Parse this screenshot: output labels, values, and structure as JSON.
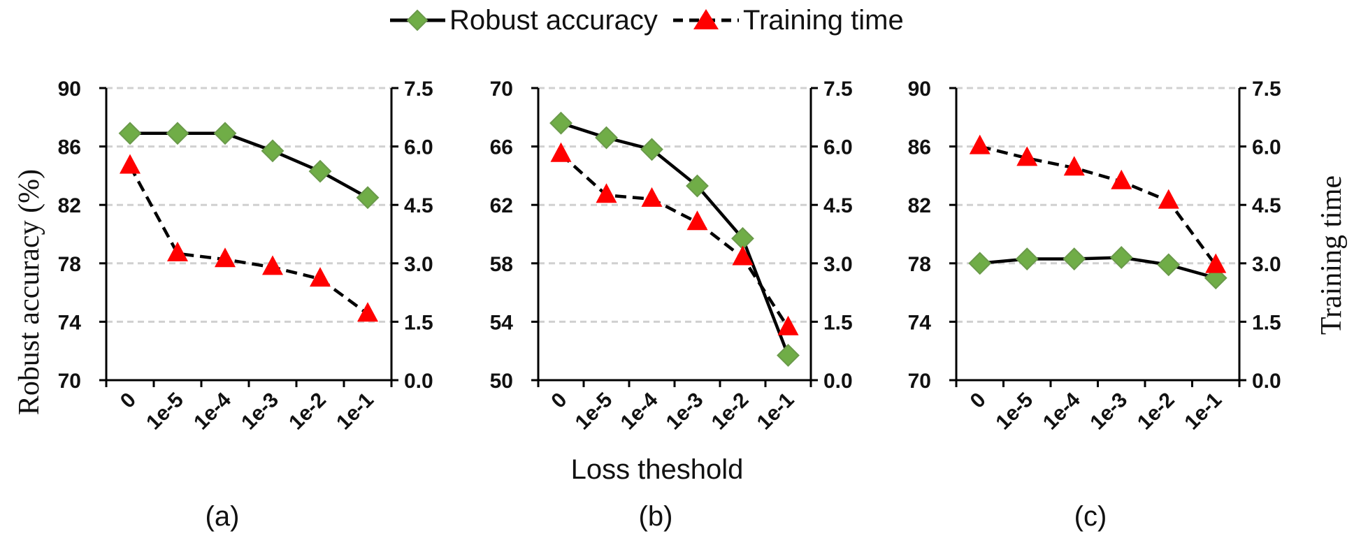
{
  "legend": {
    "items": [
      {
        "label": "Robust accuracy",
        "line": "solid",
        "marker": "diamond",
        "color": "#70ad47"
      },
      {
        "label": "Training time",
        "line": "dashed",
        "marker": "triangle",
        "color": "#ff0000"
      }
    ]
  },
  "shared": {
    "x_title": "Loss theshold",
    "y_left_title": "Robust accuracy (%)",
    "y_right_title": "Training time"
  },
  "chart_data": [
    {
      "type": "line",
      "caption": "(a)",
      "categories": [
        "0",
        "1e-5",
        "1e-4",
        "1e-3",
        "1e-2",
        "1e-1"
      ],
      "ylim_left": [
        70,
        90
      ],
      "yticks_left": [
        "70",
        "74",
        "78",
        "82",
        "86",
        "90"
      ],
      "ylim_right": [
        0,
        7.5
      ],
      "yticks_right": [
        "0.0",
        "1.5",
        "3.0",
        "4.5",
        "6.0",
        "7.5"
      ],
      "grid": "horizontal-dashed",
      "series": [
        {
          "name": "Robust accuracy",
          "axis": "left",
          "values": [
            86.9,
            86.9,
            86.9,
            85.7,
            84.3,
            82.5
          ]
        },
        {
          "name": "Training time",
          "axis": "right",
          "values": [
            5.5,
            3.25,
            3.1,
            2.9,
            2.6,
            1.7
          ]
        }
      ]
    },
    {
      "type": "line",
      "caption": "(b)",
      "categories": [
        "0",
        "1e-5",
        "1e-4",
        "1e-3",
        "1e-2",
        "1e-1"
      ],
      "ylim_left": [
        50,
        70
      ],
      "yticks_left": [
        "50",
        "54",
        "58",
        "62",
        "66",
        "70"
      ],
      "ylim_right": [
        0,
        7.5
      ],
      "yticks_right": [
        "0.0",
        "1.5",
        "3.0",
        "4.5",
        "6.0",
        "7.5"
      ],
      "grid": "horizontal-dashed",
      "series": [
        {
          "name": "Robust accuracy",
          "axis": "left",
          "values": [
            67.6,
            66.6,
            65.8,
            63.3,
            59.7,
            51.7
          ]
        },
        {
          "name": "Training time",
          "axis": "right",
          "values": [
            5.8,
            4.75,
            4.65,
            4.05,
            3.15,
            1.35
          ]
        }
      ]
    },
    {
      "type": "line",
      "caption": "(c)",
      "categories": [
        "0",
        "1e-5",
        "1e-4",
        "1e-3",
        "1e-2",
        "1e-1"
      ],
      "ylim_left": [
        70,
        90
      ],
      "yticks_left": [
        "70",
        "74",
        "78",
        "82",
        "86",
        "90"
      ],
      "ylim_right": [
        0,
        7.5
      ],
      "yticks_right": [
        "0.0",
        "1.5",
        "3.0",
        "4.5",
        "6.0",
        "7.5"
      ],
      "grid": "horizontal-dashed",
      "series": [
        {
          "name": "Robust accuracy",
          "axis": "left",
          "values": [
            78.0,
            78.3,
            78.3,
            78.4,
            77.9,
            77.0
          ]
        },
        {
          "name": "Training time",
          "axis": "right",
          "values": [
            6.0,
            5.7,
            5.45,
            5.1,
            4.6,
            2.95
          ]
        }
      ]
    }
  ]
}
